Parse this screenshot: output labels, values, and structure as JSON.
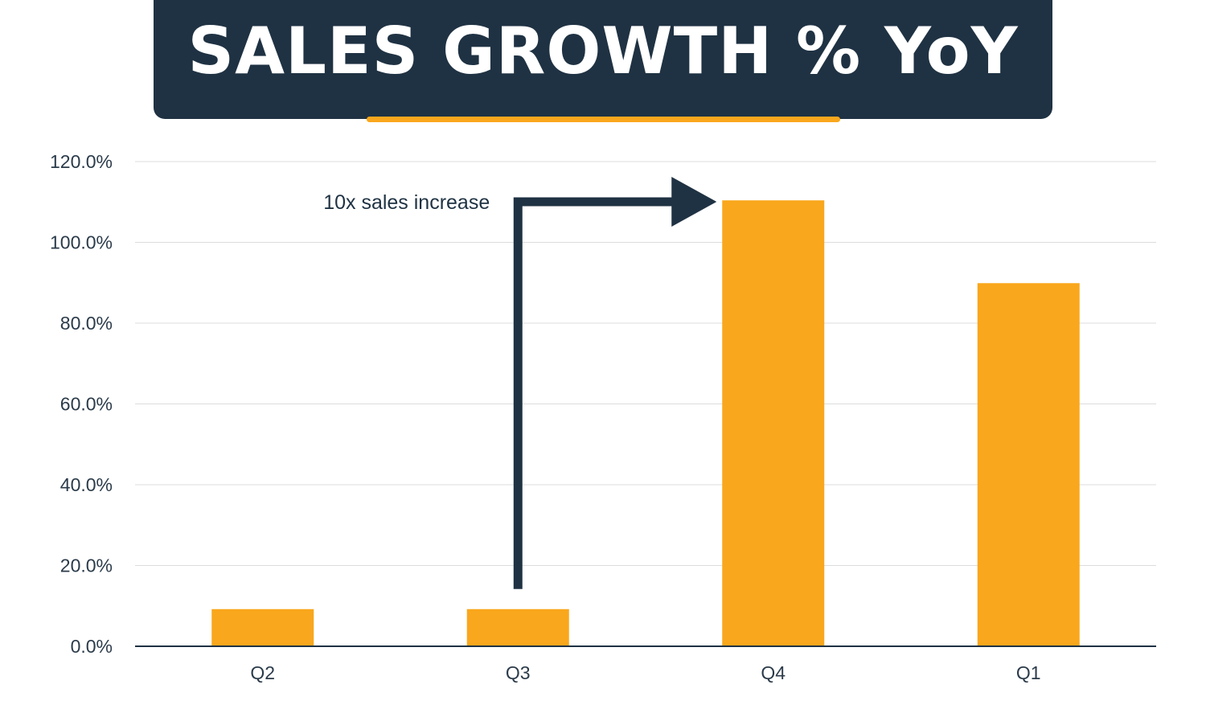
{
  "header": {
    "title": "SALES GROWTH % YoY"
  },
  "colors": {
    "banner": "#1f3243",
    "accent": "#f9a71c",
    "bar": "#f9a71c",
    "grid": "#dcdcdc",
    "axis": "#1f3243",
    "arrow": "#1f3243"
  },
  "chart_data": {
    "type": "bar",
    "categories": [
      "Q2",
      "Q3",
      "Q4",
      "Q1"
    ],
    "values": [
      9.2,
      9.2,
      110.4,
      89.9
    ],
    "ylim": [
      0,
      120
    ],
    "yticks": [
      0,
      20,
      40,
      60,
      80,
      100,
      120
    ],
    "ytick_labels": [
      "0.0%",
      "20.0%",
      "40.0%",
      "60.0%",
      "80.0%",
      "100.0%",
      "120.0%"
    ],
    "grid": true,
    "annotation": {
      "text": "10x sales increase",
      "from_category": "Q3",
      "to_category": "Q4"
    }
  }
}
